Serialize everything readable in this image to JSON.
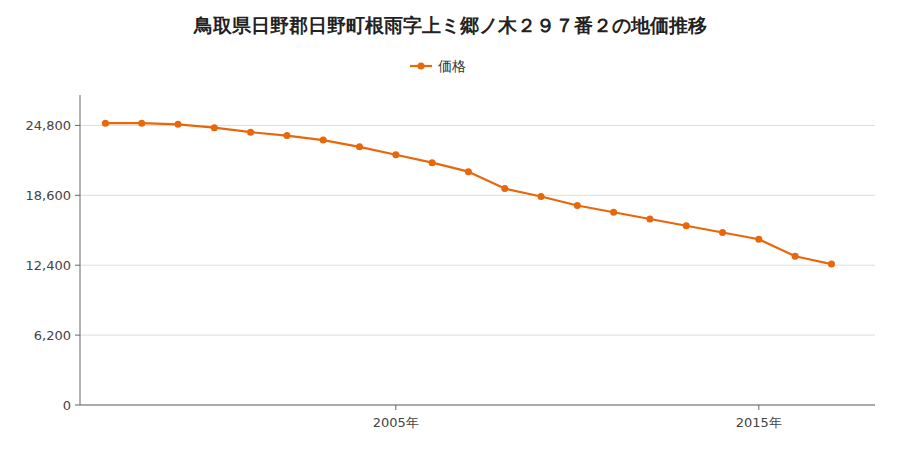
{
  "chart_data": {
    "type": "line",
    "title": "鳥取県日野郡日野町根雨字上ミ郷ノ木２９７番２の地価推移",
    "x": [
      1997,
      1998,
      1999,
      2000,
      2001,
      2002,
      2003,
      2004,
      2005,
      2006,
      2007,
      2008,
      2009,
      2010,
      2011,
      2012,
      2013,
      2014,
      2015,
      2016,
      2017
    ],
    "series": [
      {
        "name": "価格",
        "color": "#e8670a",
        "marker": "circle",
        "line_style": "solid",
        "values": [
          25000,
          25000,
          24900,
          24600,
          24200,
          23900,
          23500,
          22900,
          22200,
          21500,
          20700,
          19200,
          18500,
          17700,
          17100,
          16500,
          15900,
          15300,
          14700,
          13200,
          12500
        ]
      }
    ],
    "xlim": [
      1996.3,
      2018.2
    ],
    "xticks": [
      {
        "value": 2005,
        "label": "2005年"
      },
      {
        "value": 2015,
        "label": "2015年"
      }
    ],
    "ylim": [
      0,
      27500
    ],
    "yticks": [
      0,
      {
        "value": 6200,
        "label": "6,200"
      },
      {
        "value": 12400,
        "label": "12,400"
      },
      {
        "value": 18600,
        "label": "18,600"
      },
      {
        "value": 24800,
        "label": "24,800"
      }
    ],
    "grid": true,
    "legend": "top"
  }
}
